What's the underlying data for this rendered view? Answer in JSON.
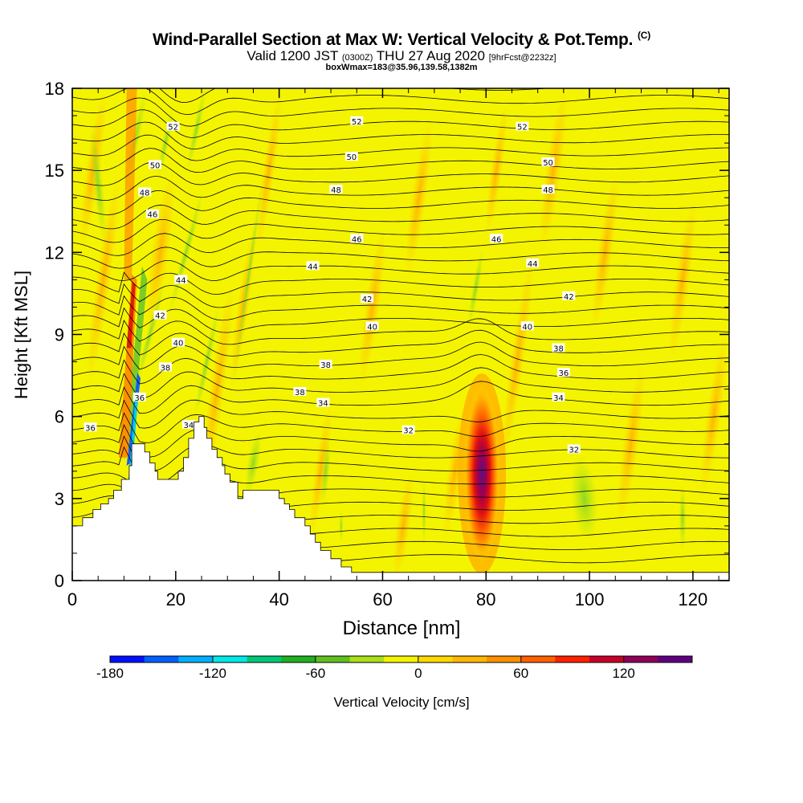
{
  "titles": {
    "main": "Wind-Parallel Section at Max W: Vertical Velocity & Pot.Temp.",
    "copyright": "(C)",
    "valid_prefix": "Valid 1200 JST",
    "valid_utc": "(0300Z)",
    "valid_date": "THU 27 Aug 2020",
    "forecast": "[9hrFcst@2232z]",
    "boxinfo": "boxWmax=183@35.96,139.58,1382m"
  },
  "colorbar": {
    "label": "Vertical Velocity [cm/s]",
    "ticks": [
      "-180",
      "-120",
      "-60",
      "0",
      "60",
      "120"
    ],
    "colors": [
      "#0010ff",
      "#0060ff",
      "#00b0ff",
      "#00e8e8",
      "#00c878",
      "#20b020",
      "#60c020",
      "#a8e018",
      "#f4f400",
      "#ffd800",
      "#ffb800",
      "#ff9000",
      "#ff6000",
      "#ff2000",
      "#c80028",
      "#900058",
      "#600080"
    ]
  },
  "chart_data": {
    "type": "heatmap",
    "title": "Wind-Parallel Section at Max W: Vertical Velocity & Pot.Temp.",
    "xlabel": "Distance [nm]",
    "ylabel": "Height [Kft MSL]",
    "xlim": [
      0,
      127
    ],
    "ylim": [
      0,
      18
    ],
    "x_ticks": [
      0,
      20,
      40,
      60,
      80,
      100,
      120
    ],
    "y_ticks": [
      0,
      3,
      6,
      9,
      12,
      15,
      18
    ],
    "background_value_cms": 10,
    "updraft_max": {
      "x": 79,
      "y_kft": 4,
      "w_cms": 160
    },
    "terrain": [
      [
        0,
        0
      ],
      [
        0,
        2
      ],
      [
        2,
        2
      ],
      [
        2,
        2.3
      ],
      [
        4,
        2.3
      ],
      [
        4,
        2.6
      ],
      [
        5.5,
        2.6
      ],
      [
        5.5,
        2.8
      ],
      [
        7,
        2.8
      ],
      [
        7,
        3
      ],
      [
        8,
        3
      ],
      [
        8,
        3.3
      ],
      [
        9.5,
        3.3
      ],
      [
        9.5,
        3.7
      ],
      [
        11,
        3.7
      ],
      [
        11,
        4.2
      ],
      [
        11.5,
        4.2
      ],
      [
        11.5,
        5
      ],
      [
        14,
        5
      ],
      [
        14,
        4.7
      ],
      [
        15,
        4.7
      ],
      [
        15,
        4.3
      ],
      [
        16,
        4.3
      ],
      [
        16,
        4
      ],
      [
        16.5,
        4
      ],
      [
        16.5,
        3.7
      ],
      [
        20.5,
        3.7
      ],
      [
        20.5,
        4
      ],
      [
        21.5,
        4
      ],
      [
        21.5,
        4.5
      ],
      [
        22.5,
        4.5
      ],
      [
        22.5,
        5.2
      ],
      [
        23.5,
        5.2
      ],
      [
        23.5,
        5.8
      ],
      [
        24.5,
        5.8
      ],
      [
        24.5,
        6
      ],
      [
        25.5,
        6
      ],
      [
        25.5,
        5.6
      ],
      [
        26,
        5.6
      ],
      [
        26,
        5.2
      ],
      [
        27,
        5.2
      ],
      [
        27,
        4.8
      ],
      [
        28,
        4.8
      ],
      [
        28,
        4.5
      ],
      [
        29,
        4.5
      ],
      [
        29,
        4.2
      ],
      [
        29.5,
        4.2
      ],
      [
        29.5,
        3.9
      ],
      [
        30.5,
        3.9
      ],
      [
        30.5,
        3.6
      ],
      [
        32,
        3.6
      ],
      [
        32,
        3
      ],
      [
        33,
        3
      ],
      [
        33,
        3.3
      ],
      [
        40,
        3.3
      ],
      [
        40,
        3
      ],
      [
        41,
        3
      ],
      [
        41,
        2.8
      ],
      [
        42,
        2.8
      ],
      [
        42,
        2.6
      ],
      [
        43,
        2.6
      ],
      [
        43,
        2.3
      ],
      [
        45,
        2.3
      ],
      [
        45,
        2
      ],
      [
        46,
        2
      ],
      [
        46,
        1.7
      ],
      [
        47,
        1.7
      ],
      [
        47,
        1.4
      ],
      [
        48,
        1.4
      ],
      [
        48,
        1.1
      ],
      [
        50,
        1.1
      ],
      [
        50,
        0.8
      ],
      [
        52,
        0.8
      ],
      [
        52,
        0.5
      ],
      [
        54,
        0.5
      ],
      [
        54,
        0.3
      ],
      [
        127,
        0.3
      ],
      [
        127,
        0
      ]
    ],
    "isentropes": {
      "labels_K": [
        32,
        34,
        36,
        38,
        40,
        42,
        44,
        46,
        48,
        50,
        52
      ],
      "label_positions": [
        {
          "x": 3.5,
          "y": 5.6,
          "text": "36"
        },
        {
          "x": 13,
          "y": 6.7,
          "text": "36"
        },
        {
          "x": 18,
          "y": 7.8,
          "text": "38"
        },
        {
          "x": 20.5,
          "y": 8.7,
          "text": "40"
        },
        {
          "x": 17,
          "y": 9.7,
          "text": "42"
        },
        {
          "x": 21,
          "y": 11,
          "text": "44"
        },
        {
          "x": 15.5,
          "y": 13.4,
          "text": "46"
        },
        {
          "x": 14,
          "y": 14.2,
          "text": "48"
        },
        {
          "x": 16,
          "y": 15.2,
          "text": "50"
        },
        {
          "x": 19.5,
          "y": 16.6,
          "text": "52"
        },
        {
          "x": 22.5,
          "y": 5.7,
          "text": "34"
        },
        {
          "x": 44,
          "y": 6.9,
          "text": "38"
        },
        {
          "x": 48.5,
          "y": 6.5,
          "text": "34"
        },
        {
          "x": 49,
          "y": 7.9,
          "text": "38"
        },
        {
          "x": 58,
          "y": 9.3,
          "text": "40"
        },
        {
          "x": 57,
          "y": 10.3,
          "text": "42"
        },
        {
          "x": 46.5,
          "y": 11.5,
          "text": "44"
        },
        {
          "x": 55,
          "y": 12.5,
          "text": "46"
        },
        {
          "x": 51,
          "y": 14.3,
          "text": "48"
        },
        {
          "x": 54,
          "y": 15.5,
          "text": "50"
        },
        {
          "x": 55,
          "y": 16.8,
          "text": "52"
        },
        {
          "x": 65,
          "y": 5.5,
          "text": "32"
        },
        {
          "x": 97,
          "y": 4.8,
          "text": "32"
        },
        {
          "x": 94,
          "y": 6.7,
          "text": "34"
        },
        {
          "x": 95,
          "y": 7.6,
          "text": "36"
        },
        {
          "x": 94,
          "y": 8.5,
          "text": "38"
        },
        {
          "x": 88,
          "y": 9.3,
          "text": "40"
        },
        {
          "x": 96,
          "y": 10.4,
          "text": "42"
        },
        {
          "x": 89,
          "y": 11.6,
          "text": "44"
        },
        {
          "x": 82,
          "y": 12.5,
          "text": "46"
        },
        {
          "x": 92,
          "y": 14.3,
          "text": "48"
        },
        {
          "x": 92,
          "y": 15.3,
          "text": "50"
        },
        {
          "x": 87,
          "y": 16.6,
          "text": "52"
        }
      ]
    }
  }
}
